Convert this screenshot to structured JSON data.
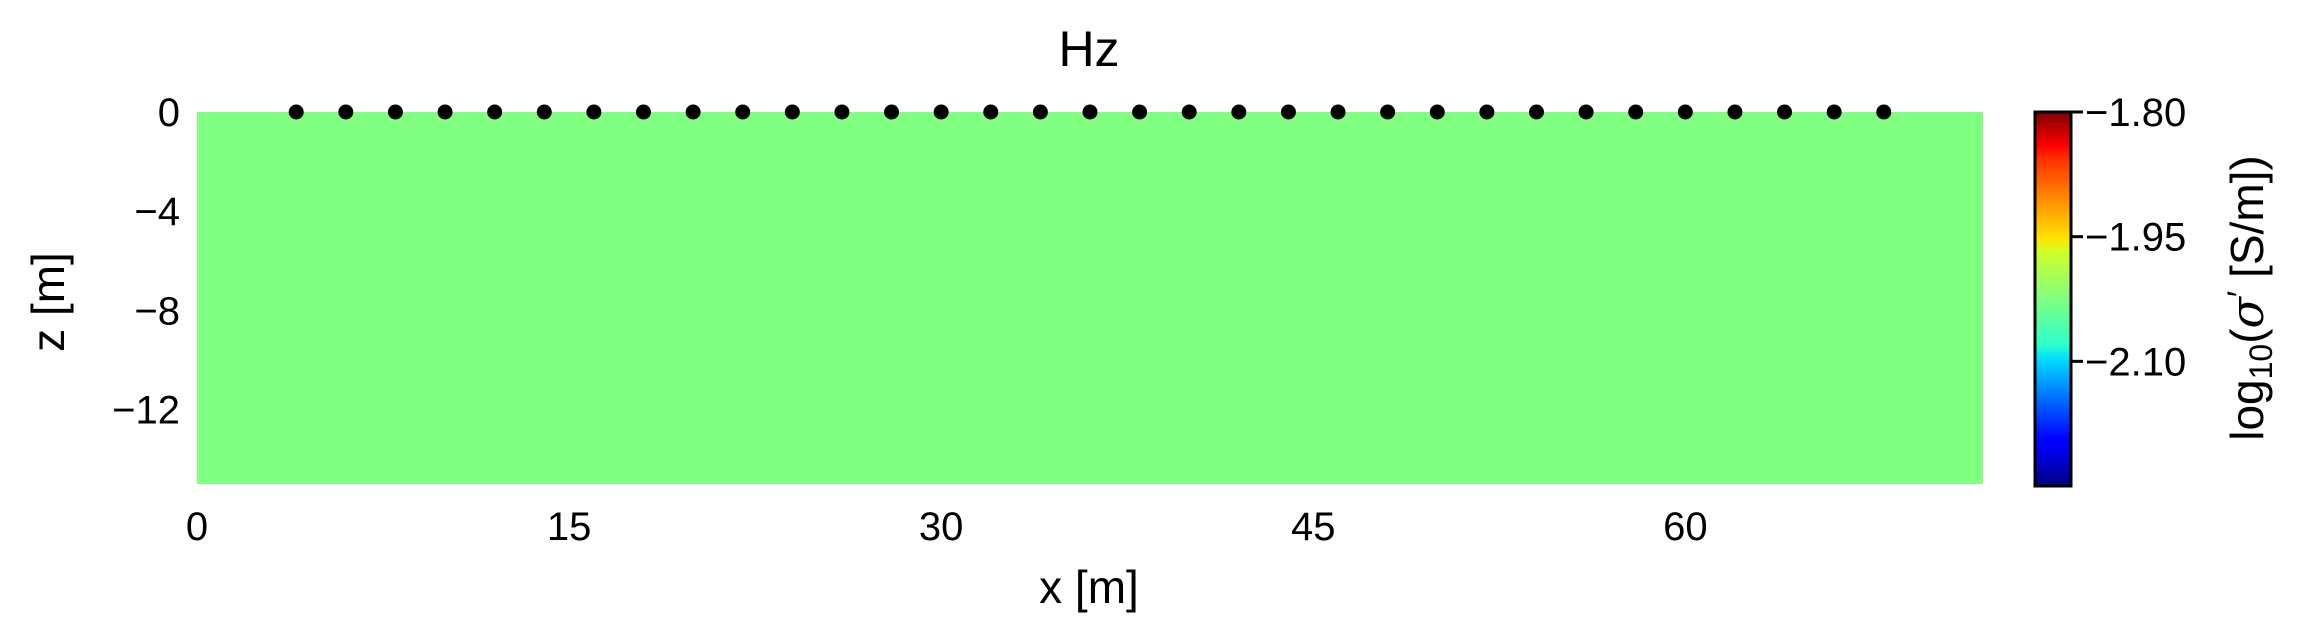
{
  "chart_data": {
    "type": "heatmap",
    "title": "Hz",
    "xlabel": "x [m]",
    "ylabel": "z [m]",
    "xlim": [
      0,
      72
    ],
    "ylim": [
      -15,
      0
    ],
    "xticks": [
      0,
      15,
      30,
      45,
      60
    ],
    "xtick_labels": [
      "0",
      "15",
      "30",
      "45",
      "60"
    ],
    "yticks": [
      0,
      -4,
      -8,
      -12
    ],
    "ytick_labels": [
      "0",
      "−4",
      "−8",
      "−12"
    ],
    "field": {
      "value": -1.95,
      "color": "#80ff80"
    },
    "receivers": {
      "z": 0,
      "x": [
        4,
        6,
        8,
        10,
        12,
        14,
        16,
        18,
        20,
        22,
        24,
        26,
        28,
        30,
        32,
        34,
        36,
        38,
        40,
        42,
        44,
        46,
        48,
        50,
        52,
        54,
        56,
        58,
        60,
        62,
        64,
        66,
        68
      ],
      "color": "#000000"
    },
    "colorbar": {
      "label_prefix": "log",
      "label_subscript": "10",
      "label_open": "(",
      "label_symbol": "σ",
      "label_prime": "′",
      "label_unit": " [S/m])",
      "colormap": "jet",
      "vmin": -2.25,
      "vmax": -1.8,
      "ticks": [
        -1.8,
        -1.95,
        -2.1
      ],
      "tick_labels": [
        "−1.80",
        "−1.95",
        "−2.10"
      ]
    }
  }
}
